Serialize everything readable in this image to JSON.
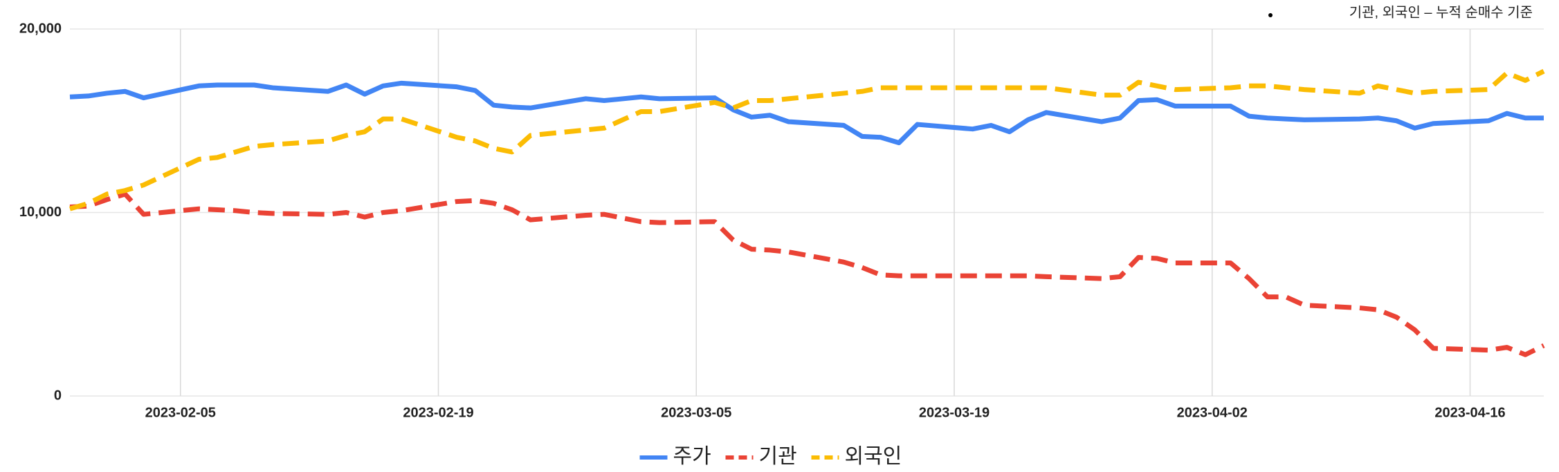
{
  "chart_data": {
    "type": "line",
    "note": "기관, 외국인 – 누적 순매수 기준",
    "x": [
      "2023-01-30",
      "2023-01-31",
      "2023-02-01",
      "2023-02-02",
      "2023-02-03",
      "2023-02-06",
      "2023-02-07",
      "2023-02-08",
      "2023-02-09",
      "2023-02-10",
      "2023-02-13",
      "2023-02-14",
      "2023-02-15",
      "2023-02-16",
      "2023-02-17",
      "2023-02-20",
      "2023-02-21",
      "2023-02-22",
      "2023-02-23",
      "2023-02-24",
      "2023-02-27",
      "2023-02-28",
      "2023-03-02",
      "2023-03-03",
      "2023-03-06",
      "2023-03-07",
      "2023-03-08",
      "2023-03-09",
      "2023-03-10",
      "2023-03-13",
      "2023-03-14",
      "2023-03-15",
      "2023-03-16",
      "2023-03-17",
      "2023-03-20",
      "2023-03-21",
      "2023-03-22",
      "2023-03-23",
      "2023-03-24",
      "2023-03-27",
      "2023-03-28",
      "2023-03-29",
      "2023-03-30",
      "2023-03-31",
      "2023-04-03",
      "2023-04-04",
      "2023-04-05",
      "2023-04-06",
      "2023-04-07",
      "2023-04-10",
      "2023-04-11",
      "2023-04-12",
      "2023-04-13",
      "2023-04-14",
      "2023-04-17",
      "2023-04-18",
      "2023-04-19",
      "2023-04-20"
    ],
    "series": [
      {
        "name": "주가",
        "color": "#4285f4",
        "dash": false,
        "values": [
          16300,
          16350,
          16500,
          16600,
          16250,
          16900,
          16950,
          16950,
          16950,
          16800,
          16600,
          16950,
          16450,
          16900,
          17050,
          16850,
          16650,
          15850,
          15750,
          15700,
          16200,
          16100,
          16300,
          16200,
          16250,
          15600,
          15200,
          15300,
          14950,
          14750,
          14150,
          14100,
          13800,
          14800,
          14550,
          14750,
          14400,
          15050,
          15450,
          14950,
          15150,
          16100,
          16150,
          15800,
          15800,
          15250,
          15150,
          15100,
          15050,
          15100,
          15150,
          15000,
          14600,
          14850,
          15000,
          15400,
          15150,
          15150
        ]
      },
      {
        "name": "기관",
        "color": "#ea4335",
        "dash": true,
        "values": [
          10300,
          10350,
          10700,
          11000,
          9900,
          10200,
          10150,
          10100,
          10000,
          9950,
          9900,
          10000,
          9750,
          10000,
          10100,
          10600,
          10650,
          10500,
          10150,
          9600,
          9850,
          9900,
          9500,
          9450,
          9500,
          8500,
          8000,
          7950,
          7850,
          7300,
          7000,
          6600,
          6550,
          6550,
          6550,
          6550,
          6550,
          6550,
          6500,
          6400,
          6500,
          7550,
          7500,
          7250,
          7250,
          6400,
          5400,
          5400,
          4950,
          4800,
          4700,
          4300,
          3600,
          2600,
          2500,
          2650,
          2250,
          2750
        ]
      },
      {
        "name": "외국인",
        "color": "#fbbc04",
        "dash": true,
        "values": [
          10200,
          10500,
          11000,
          11200,
          11500,
          12900,
          13000,
          13300,
          13600,
          13700,
          13900,
          14200,
          14400,
          15100,
          15100,
          14100,
          13900,
          13500,
          13300,
          14200,
          14500,
          14600,
          15500,
          15500,
          16000,
          15700,
          16100,
          16100,
          16200,
          16500,
          16600,
          16800,
          16800,
          16800,
          16800,
          16800,
          16800,
          16800,
          16800,
          16400,
          16400,
          17100,
          16900,
          16700,
          16800,
          16900,
          16900,
          16800,
          16700,
          16500,
          16900,
          16700,
          16500,
          16600,
          16700,
          17600,
          17200,
          17700
        ]
      }
    ],
    "xlim": [
      "2023-01-30",
      "2023-04-20"
    ],
    "xticks": [
      "2023-02-05",
      "2023-02-19",
      "2023-03-05",
      "2023-03-19",
      "2023-04-02",
      "2023-04-16"
    ],
    "ylim": [
      0,
      20000
    ],
    "yticks": [
      0,
      {
        "value": 10000,
        "label": "10,000"
      },
      {
        "value": 20000,
        "label": "20,000"
      }
    ],
    "grid": true
  }
}
